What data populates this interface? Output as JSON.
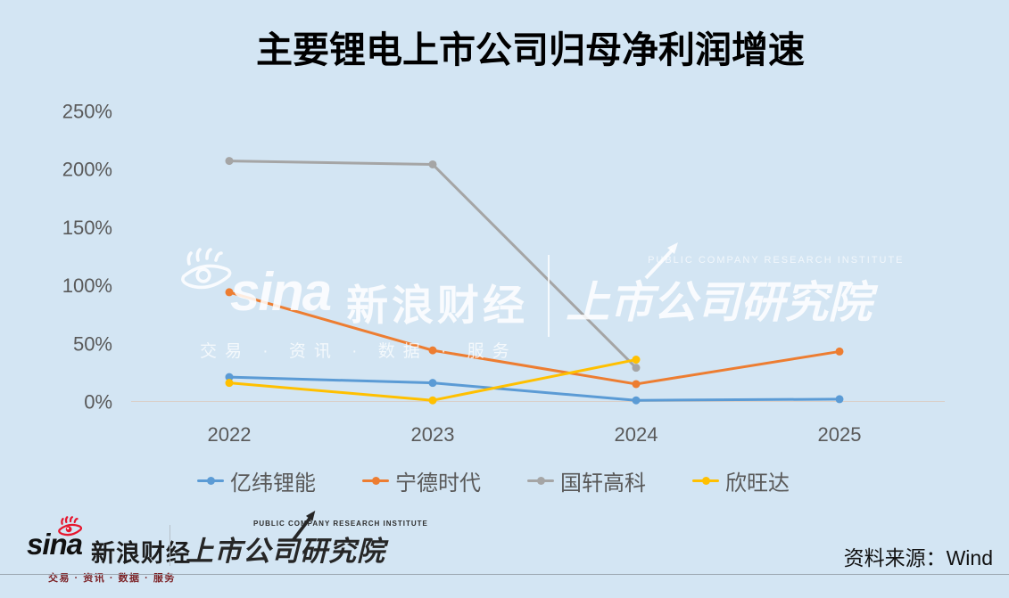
{
  "title": "主要锂电上市公司归母净利润增速",
  "chart_data": {
    "type": "line",
    "title": "主要锂电上市公司归母净利润增速",
    "categories": [
      "2022",
      "2023",
      "2024",
      "2025"
    ],
    "series": [
      {
        "name": "亿纬锂能",
        "color": "#5B9BD5",
        "values": [
          21,
          16,
          1,
          2
        ]
      },
      {
        "name": "宁德时代",
        "color": "#ED7D31",
        "values": [
          94,
          44,
          15,
          43
        ]
      },
      {
        "name": "国轩高科",
        "color": "#A5A5A5",
        "values": [
          207,
          204,
          29,
          null
        ]
      },
      {
        "name": "欣旺达",
        "color": "#FFC000",
        "values": [
          16,
          1,
          36,
          null
        ]
      }
    ],
    "yticks": [
      0,
      50,
      100,
      150,
      200,
      250
    ],
    "ytick_suffix": "%",
    "ylim": [
      0,
      250
    ],
    "grid": false,
    "baseline_at_zero": true,
    "legend_position": "bottom",
    "marker": "circle"
  },
  "watermark": {
    "sina_word": "sina",
    "sina_brand": "新浪财经",
    "sina_tagline": "交易 · 资讯 · 数据 · 服务",
    "institute_en": "PUBLIC COMPANY RESEARCH INSTITUTE",
    "institute_cn": "上市公司研究院"
  },
  "footer": {
    "sina_word": "sina",
    "sina_brand": "新浪财经",
    "sina_tagline": "交易 · 资讯 · 数据 · 服务",
    "institute_en": "PUBLIC COMPANY RESEARCH INSTITUTE",
    "institute_cn": "上市公司研究院",
    "source": "资料来源：Wind"
  },
  "colors": {
    "background": "#D3E5F3",
    "axis_text": "#595959",
    "baseline": "#D9D0C9",
    "footer_rule": "#9BA6AF",
    "sina_red": "#E6162D",
    "tagline_red": "#7B2024"
  }
}
